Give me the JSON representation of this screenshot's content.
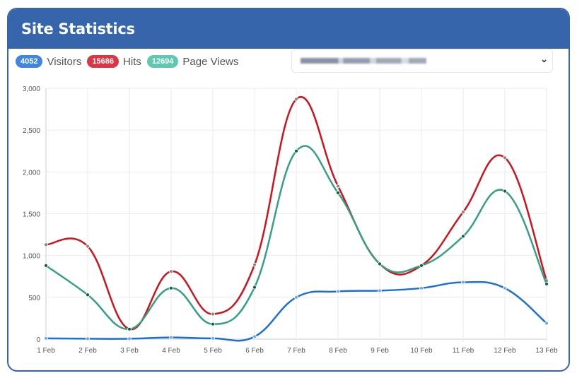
{
  "header": {
    "title": "Site Statistics"
  },
  "legend": [
    {
      "count": "4052",
      "label": "Visitors",
      "color": "#3f86e0"
    },
    {
      "count": "15686",
      "label": "Hits",
      "color": "#dc3545"
    },
    {
      "count": "12694",
      "label": "Page Views",
      "color": "#5ec9b0"
    }
  ],
  "chart_data": {
    "type": "line",
    "categories": [
      "1 Feb",
      "2 Feb",
      "3 Feb",
      "4 Feb",
      "5 Feb",
      "6 Feb",
      "7 Feb",
      "8 Feb",
      "9 Feb",
      "10 Feb",
      "11 Feb",
      "12 Feb",
      "13 Feb"
    ],
    "ylim": [
      0,
      3000
    ],
    "yticks": [
      "0",
      "500",
      "1,000",
      "1,500",
      "2,000",
      "2,500",
      "3,000"
    ],
    "grid": true,
    "series": [
      {
        "name": "Hits",
        "color": "#d0121b",
        "values": [
          1130,
          1110,
          120,
          810,
          300,
          890,
          2870,
          1830,
          900,
          880,
          1520,
          2170,
          700
        ]
      },
      {
        "name": "Page Views",
        "color": "#35a085",
        "values": [
          880,
          530,
          120,
          610,
          180,
          620,
          2250,
          1750,
          900,
          880,
          1230,
          1770,
          660
        ]
      },
      {
        "name": "Visitors",
        "color": "#1c6fd6",
        "values": [
          10,
          5,
          5,
          20,
          10,
          30,
          500,
          570,
          580,
          610,
          680,
          610,
          190
        ]
      }
    ]
  }
}
